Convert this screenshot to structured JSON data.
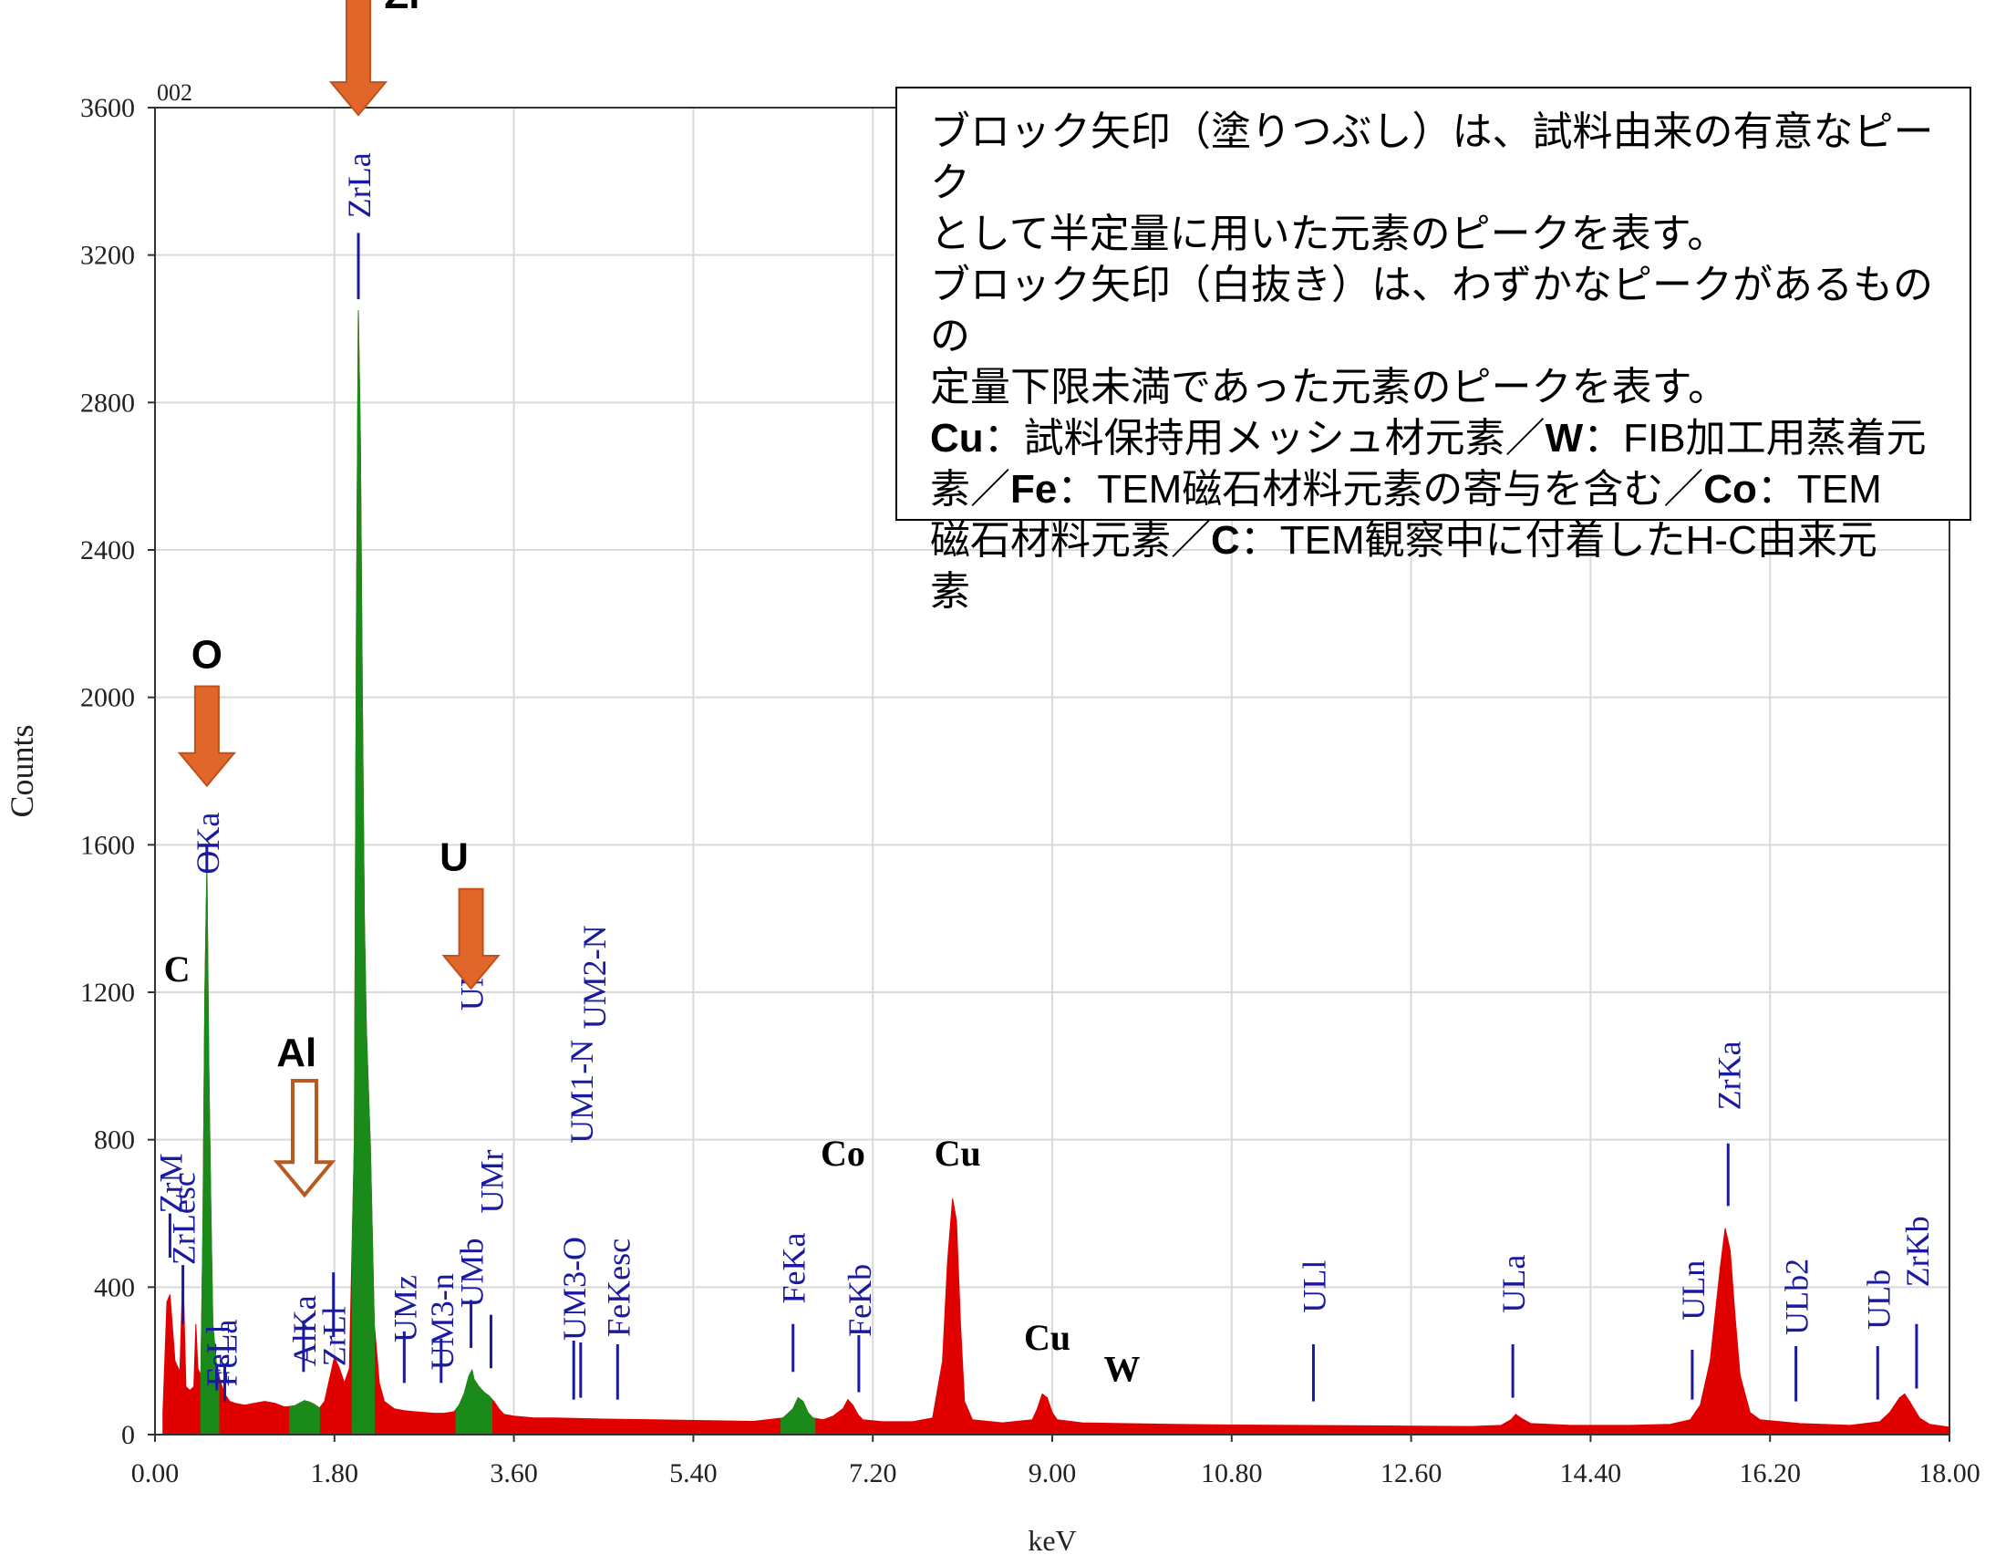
{
  "chart_data": {
    "type": "area",
    "title": "",
    "spectrum_id": "002",
    "xlabel": "keV",
    "ylabel": "Counts",
    "xlim": [
      0,
      18
    ],
    "ylim": [
      0,
      3600
    ],
    "xticks": [
      "0.00",
      "1.80",
      "3.60",
      "5.40",
      "7.20",
      "9.00",
      "10.80",
      "12.60",
      "14.40",
      "16.20",
      "18.00"
    ],
    "yticks": [
      "0",
      "400",
      "800",
      "1200",
      "1600",
      "2000",
      "2400",
      "2800",
      "3200",
      "3600"
    ],
    "grid": true,
    "colors": {
      "spectrum": "#e00000",
      "highlight": "#1a8a1a",
      "marker": "#1a1aa0",
      "arrow": "#e0662a",
      "arrow_outline": "#b85a20"
    },
    "spectrum": [
      [
        0.08,
        60
      ],
      [
        0.12,
        360
      ],
      [
        0.15,
        380
      ],
      [
        0.2,
        200
      ],
      [
        0.25,
        170
      ],
      [
        0.28,
        450
      ],
      [
        0.31,
        130
      ],
      [
        0.35,
        120
      ],
      [
        0.39,
        130
      ],
      [
        0.41,
        300
      ],
      [
        0.43,
        180
      ],
      [
        0.46,
        160
      ],
      [
        0.48,
        550
      ],
      [
        0.5,
        1200
      ],
      [
        0.52,
        1540
      ],
      [
        0.54,
        1000
      ],
      [
        0.56,
        620
      ],
      [
        0.58,
        300
      ],
      [
        0.62,
        180
      ],
      [
        0.66,
        140
      ],
      [
        0.7,
        110
      ],
      [
        0.75,
        90
      ],
      [
        0.8,
        85
      ],
      [
        0.9,
        80
      ],
      [
        1.0,
        85
      ],
      [
        1.1,
        90
      ],
      [
        1.2,
        85
      ],
      [
        1.3,
        75
      ],
      [
        1.4,
        78
      ],
      [
        1.45,
        85
      ],
      [
        1.5,
        92
      ],
      [
        1.55,
        88
      ],
      [
        1.6,
        82
      ],
      [
        1.65,
        72
      ],
      [
        1.7,
        90
      ],
      [
        1.75,
        150
      ],
      [
        1.8,
        210
      ],
      [
        1.85,
        180
      ],
      [
        1.9,
        140
      ],
      [
        1.95,
        180
      ],
      [
        2.0,
        800
      ],
      [
        2.02,
        2200
      ],
      [
        2.04,
        3050
      ],
      [
        2.06,
        2700
      ],
      [
        2.08,
        2000
      ],
      [
        2.1,
        1400
      ],
      [
        2.12,
        1100
      ],
      [
        2.16,
        780
      ],
      [
        2.2,
        300
      ],
      [
        2.25,
        140
      ],
      [
        2.3,
        90
      ],
      [
        2.4,
        70
      ],
      [
        2.5,
        65
      ],
      [
        2.6,
        62
      ],
      [
        2.7,
        60
      ],
      [
        2.8,
        58
      ],
      [
        2.9,
        58
      ],
      [
        3.0,
        62
      ],
      [
        3.05,
        80
      ],
      [
        3.1,
        110
      ],
      [
        3.15,
        160
      ],
      [
        3.18,
        175
      ],
      [
        3.2,
        150
      ],
      [
        3.25,
        130
      ],
      [
        3.3,
        115
      ],
      [
        3.35,
        105
      ],
      [
        3.4,
        90
      ],
      [
        3.45,
        70
      ],
      [
        3.5,
        55
      ],
      [
        3.6,
        50
      ],
      [
        3.8,
        45
      ],
      [
        4.0,
        45
      ],
      [
        4.5,
        42
      ],
      [
        5.0,
        40
      ],
      [
        5.5,
        38
      ],
      [
        6.0,
        36
      ],
      [
        6.3,
        45
      ],
      [
        6.4,
        70
      ],
      [
        6.45,
        100
      ],
      [
        6.5,
        90
      ],
      [
        6.55,
        60
      ],
      [
        6.6,
        45
      ],
      [
        6.7,
        40
      ],
      [
        6.8,
        50
      ],
      [
        6.9,
        70
      ],
      [
        6.95,
        95
      ],
      [
        7.0,
        80
      ],
      [
        7.05,
        55
      ],
      [
        7.1,
        40
      ],
      [
        7.3,
        35
      ],
      [
        7.6,
        35
      ],
      [
        7.8,
        45
      ],
      [
        7.9,
        200
      ],
      [
        7.95,
        470
      ],
      [
        8.0,
        640
      ],
      [
        8.04,
        580
      ],
      [
        8.08,
        300
      ],
      [
        8.12,
        90
      ],
      [
        8.2,
        40
      ],
      [
        8.5,
        32
      ],
      [
        8.8,
        40
      ],
      [
        8.85,
        70
      ],
      [
        8.9,
        110
      ],
      [
        8.95,
        100
      ],
      [
        9.0,
        60
      ],
      [
        9.05,
        40
      ],
      [
        9.3,
        32
      ],
      [
        9.7,
        30
      ],
      [
        10.2,
        28
      ],
      [
        10.8,
        26
      ],
      [
        11.4,
        25
      ],
      [
        12.0,
        24
      ],
      [
        12.6,
        23
      ],
      [
        13.2,
        22
      ],
      [
        13.5,
        25
      ],
      [
        13.6,
        40
      ],
      [
        13.65,
        55
      ],
      [
        13.7,
        45
      ],
      [
        13.8,
        30
      ],
      [
        14.2,
        25
      ],
      [
        14.8,
        25
      ],
      [
        15.2,
        28
      ],
      [
        15.4,
        40
      ],
      [
        15.5,
        80
      ],
      [
        15.6,
        200
      ],
      [
        15.7,
        450
      ],
      [
        15.75,
        560
      ],
      [
        15.8,
        500
      ],
      [
        15.85,
        320
      ],
      [
        15.9,
        160
      ],
      [
        16.0,
        60
      ],
      [
        16.1,
        40
      ],
      [
        16.5,
        30
      ],
      [
        17.0,
        25
      ],
      [
        17.3,
        35
      ],
      [
        17.4,
        60
      ],
      [
        17.5,
        100
      ],
      [
        17.55,
        110
      ],
      [
        17.6,
        90
      ],
      [
        17.7,
        45
      ],
      [
        17.8,
        28
      ],
      [
        18.0,
        20
      ]
    ],
    "green_ranges": [
      [
        0.46,
        0.64
      ],
      [
        1.35,
        1.65
      ],
      [
        1.98,
        2.2
      ],
      [
        3.02,
        3.38
      ],
      [
        6.28,
        6.62
      ]
    ],
    "peak_markers": [
      {
        "label": "ZrM",
        "x": 0.15,
        "y": 600,
        "line": [
          480,
          600
        ]
      },
      {
        "label": "ZrLesc",
        "x": 0.28,
        "y": 460,
        "line": [
          300,
          460
        ]
      },
      {
        "label": "FeLl",
        "x": 0.62,
        "y": 130,
        "line": [
          120,
          190
        ]
      },
      {
        "label": "FeLa",
        "x": 0.7,
        "y": 130,
        "line": [
          90,
          190
        ]
      },
      {
        "label": "OKa",
        "x": 0.52,
        "y": 1520,
        "line": [
          1530,
          1600
        ]
      },
      {
        "label": "AlKa",
        "x": 1.49,
        "y": 185,
        "line": [
          170,
          310
        ]
      },
      {
        "label": "ZrLl",
        "x": 1.79,
        "y": 185,
        "line": [
          265,
          440
        ]
      },
      {
        "label": "ZrLa",
        "x": 2.04,
        "y": 3300,
        "line": [
          3080,
          3260
        ]
      },
      {
        "label": "UMz",
        "x": 2.5,
        "y": 250,
        "line": [
          140,
          280
        ]
      },
      {
        "label": "UM3-n",
        "x": 2.87,
        "y": 175,
        "line": [
          140,
          260
        ]
      },
      {
        "label": "UMb",
        "x": 3.17,
        "y": 345,
        "line": [
          235,
          365
        ]
      },
      {
        "label": "UMa",
        "x": 3.17,
        "y": 1150,
        "line": null
      },
      {
        "label": "UMr",
        "x": 3.37,
        "y": 600,
        "line": [
          180,
          325
        ]
      },
      {
        "label": "UM3-O",
        "x": 4.2,
        "y": 255,
        "line": [
          95,
          255
        ]
      },
      {
        "label": "UM1-N",
        "x": 4.27,
        "y": 790,
        "line": [
          100,
          250
        ]
      },
      {
        "label": "UM2-N",
        "x": 4.4,
        "y": 1100,
        "line": null
      },
      {
        "label": "FeKesc",
        "x": 4.64,
        "y": 265,
        "line": [
          95,
          245
        ]
      },
      {
        "label": "FeKa",
        "x": 6.4,
        "y": 355,
        "line": [
          170,
          300
        ]
      },
      {
        "label": "FeKb",
        "x": 7.06,
        "y": 265,
        "line": [
          115,
          270
        ]
      },
      {
        "label": "ULl",
        "x": 11.62,
        "y": 330,
        "line": [
          90,
          245
        ]
      },
      {
        "label": "ULa",
        "x": 13.62,
        "y": 330,
        "line": [
          100,
          245
        ]
      },
      {
        "label": "ULn",
        "x": 15.42,
        "y": 310,
        "line": [
          95,
          230
        ]
      },
      {
        "label": "ZrKa",
        "x": 15.78,
        "y": 880,
        "line": [
          620,
          790
        ]
      },
      {
        "label": "ULb2",
        "x": 16.46,
        "y": 270,
        "line": [
          90,
          240
        ]
      },
      {
        "label": "ULb",
        "x": 17.28,
        "y": 285,
        "line": [
          95,
          240
        ]
      },
      {
        "label": "ZrKb",
        "x": 17.67,
        "y": 400,
        "line": [
          125,
          300
        ]
      }
    ],
    "element_labels": [
      {
        "text": "C",
        "x": 0.22,
        "y": 1230,
        "font": "serif"
      },
      {
        "text": "Co",
        "x": 6.9,
        "y": 730,
        "font": "serif"
      },
      {
        "text": "Cu",
        "x": 8.05,
        "y": 730,
        "font": "serif"
      },
      {
        "text": "Cu",
        "x": 8.95,
        "y": 230,
        "font": "serif"
      },
      {
        "text": "W",
        "x": 9.7,
        "y": 145,
        "font": "serif"
      },
      {
        "text": "Zr",
        "x": 2.5,
        "y": 3870,
        "font": "sans"
      },
      {
        "text": "O",
        "x": 0.52,
        "y": 2080,
        "font": "sans"
      },
      {
        "text": "U",
        "x": 3.0,
        "y": 1530,
        "font": "sans"
      },
      {
        "text": "Al",
        "x": 1.42,
        "y": 1000,
        "font": "sans"
      }
    ],
    "arrows": [
      {
        "element": "Zr",
        "x": 2.04,
        "filled": true,
        "y_top": 3960,
        "y_tip": 3580
      },
      {
        "element": "O",
        "x": 0.52,
        "filled": true,
        "y_top": 2030,
        "y_tip": 1760
      },
      {
        "element": "U",
        "x": 3.17,
        "y_top": 1480,
        "y_tip": 1210,
        "filled": true
      },
      {
        "element": "Al",
        "x": 1.5,
        "y_top": 960,
        "y_tip": 650,
        "filled": false
      }
    ]
  },
  "legend": {
    "line1": "ブロック矢印（塗りつぶし）は、試料由来の有意なピーク",
    "line2": "として半定量に用いた元素のピークを表す。",
    "line3": "ブロック矢印（白抜き）は、わずかなピークがあるものの",
    "line4": "定量下限未満であった元素のピークを表す。",
    "cu": "Cu",
    "cu_text": "：試料保持用メッシュ材元素／",
    "w": "W",
    "w_text": "：FIB加工用蒸着元",
    "w_text2": "素／",
    "fe": "Fe",
    "fe_text": "：TEM磁石材料元素の寄与を含む／",
    "co": "Co",
    "co_text": "：TEM",
    "co_text2": "磁石材料元素／",
    "c": "C",
    "c_text": "：TEM観察中に付着したH-C由来元",
    "c_text2": "素"
  }
}
